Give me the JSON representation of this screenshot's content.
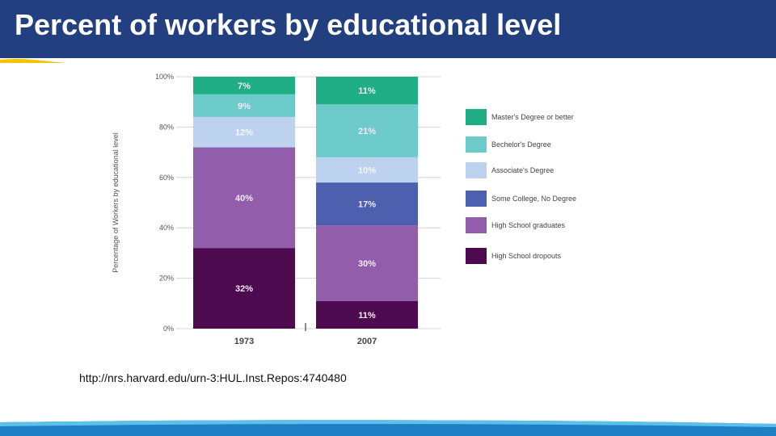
{
  "slide": {
    "title": "Percent of workers by educational level",
    "source": "http://nrs.harvard.edu/urn-3:HUL.Inst.Repos:4740480"
  },
  "colors": {
    "title_band": "#223f7f",
    "accent_stripe": "#f5c400",
    "bottom_band": "#1f7fc4",
    "bottom_highlight": "#5cc0e8"
  },
  "chart_data": {
    "type": "bar",
    "stacked": true,
    "categories": [
      "1973",
      "2007"
    ],
    "ylabel": "Percentage of Workers by educational level",
    "ylim": [
      0,
      100
    ],
    "yticks": [
      "0%",
      "20%",
      "40%",
      "60%",
      "80%",
      "100%"
    ],
    "grid": true,
    "legend_position": "right",
    "series": [
      {
        "name": "High School dropouts",
        "values": [
          32,
          11
        ],
        "labels": [
          "32%",
          "11%"
        ],
        "color": "#4e0a4e"
      },
      {
        "name": "High School graduates",
        "values": [
          40,
          30
        ],
        "labels": [
          "40%",
          "30%"
        ],
        "color": "#925eac"
      },
      {
        "name": "Some College, No Degree",
        "values": [
          0,
          17
        ],
        "labels": [
          "",
          "17%"
        ],
        "color": "#4d60b0"
      },
      {
        "name": "Associate's Degree",
        "values": [
          12,
          10
        ],
        "labels": [
          "12%",
          "10%"
        ],
        "color": "#bcd2ee"
      },
      {
        "name": "Bechelor's Degree",
        "values": [
          9,
          21
        ],
        "labels": [
          "9%",
          "21%"
        ],
        "color": "#6ecbcb"
      },
      {
        "name": "Master's Degree or better",
        "values": [
          7,
          11
        ],
        "labels": [
          "7%",
          "11%"
        ],
        "color": "#1fae85"
      }
    ],
    "legend_order": [
      "Master's Degree or better",
      "Bechelor's Degree",
      "Associate's Degree",
      "Some College, No Degree",
      "High School graduates",
      "High School dropouts"
    ]
  }
}
